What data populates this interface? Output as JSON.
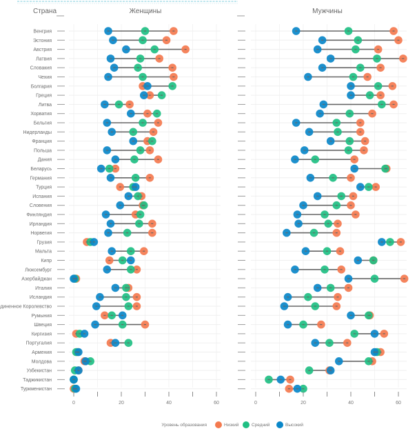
{
  "chart_data": {
    "type": "scatter",
    "subtype": "dumbbell",
    "header": {
      "country_col": "Страна",
      "panels": [
        "Женщины",
        "Мужчины"
      ]
    },
    "xlim": [
      0,
      60
    ],
    "xticks": [
      0,
      10,
      20,
      30,
      40,
      50,
      60
    ],
    "xtick_labels": [
      "0",
      "",
      "20",
      "",
      "40",
      "",
      "60"
    ],
    "grid": true,
    "legend": {
      "title": "Уровень образования",
      "placement": "bottom-center",
      "items": [
        {
          "key": "low",
          "label": "Низкий",
          "color": "#f47a4f"
        },
        {
          "key": "mid",
          "label": "Средний",
          "color": "#1fbf83"
        },
        {
          "key": "high",
          "label": "Высокий",
          "color": "#0a87c9"
        }
      ]
    },
    "connector_color": "#666666",
    "categories": [
      "Венгрия",
      "Эстония",
      "Австрия",
      "Латвия",
      "Словакия",
      "Чехия",
      "Болгария",
      "Греция",
      "Литва",
      "Хорватия",
      "Бельгия",
      "Нидерланды",
      "Франция",
      "Польша",
      "Дания",
      "Беларусь",
      "Германия",
      "Турция",
      "Испания",
      "Словения",
      "Финляндия",
      "Ирландия",
      "Норвегия",
      "Грузия",
      "Мальта",
      "Кипр",
      "Люксембург",
      "Азербайджан",
      "Италия",
      "Исландия",
      "Соединенное Королевство",
      "Румыния",
      "Швеция",
      "Киргизия",
      "Португалия",
      "Армения",
      "Молдова",
      "Узбекистан",
      "Таджикистан",
      "Туркменистан"
    ],
    "series": [
      {
        "panel": "Женщины",
        "low": [
          42,
          39,
          47,
          36,
          41.5,
          42,
          29,
          32,
          23.5,
          31,
          35.5,
          33.5,
          31,
          32,
          35.5,
          17.5,
          32,
          19.5,
          28.5,
          29,
          26,
          33,
          33,
          5.5,
          29.5,
          15,
          26.5,
          1,
          23,
          26.5,
          26.5,
          13,
          30,
          1,
          15.5,
          1.5,
          4.5,
          2,
          0,
          0
        ],
        "mid": [
          30,
          29,
          34,
          28,
          27,
          29,
          41.5,
          37,
          19,
          35,
          29,
          25,
          33,
          28,
          25.5,
          15,
          26,
          25,
          27,
          29.5,
          28,
          27.5,
          22.5,
          7,
          24,
          20.5,
          24,
          0.5,
          22,
          22,
          23,
          16,
          20.5,
          2.5,
          23,
          1,
          7,
          0.5,
          0,
          0.5
        ],
        "high": [
          14.5,
          16.5,
          22,
          15.5,
          17,
          14.5,
          31,
          29.5,
          13,
          24,
          14,
          16,
          25,
          14,
          17.5,
          11.5,
          15.5,
          26,
          23,
          19.5,
          13.5,
          15.5,
          14.5,
          8.5,
          16,
          24,
          14,
          0,
          17.5,
          11,
          9.5,
          20.5,
          9,
          4.5,
          17.5,
          2,
          5,
          2,
          0,
          1
        ]
      },
      {
        "panel": "Мужчины",
        "low": [
          58,
          60,
          51.5,
          62,
          52.5,
          47,
          57.5,
          52.5,
          58,
          49,
          44,
          44,
          46,
          45.5,
          41.5,
          55,
          40,
          50.5,
          41,
          40,
          42,
          34.5,
          34,
          61,
          35.5,
          49.5,
          36,
          62.5,
          39,
          34.5,
          34,
          48,
          27.5,
          54,
          38.5,
          52.5,
          49,
          31,
          14.5,
          14
        ],
        "mid": [
          39,
          43,
          42,
          51,
          44,
          41,
          51.5,
          48,
          53,
          39.5,
          34,
          34.5,
          39.5,
          39,
          25,
          54.5,
          32.5,
          47.5,
          36,
          34,
          29,
          30.5,
          24.5,
          56.5,
          30,
          49.5,
          29,
          50,
          31.5,
          22,
          25,
          47.5,
          20,
          41.5,
          31,
          51,
          47.5,
          22.5,
          5.5,
          20
        ],
        "high": [
          17,
          28,
          26,
          31.5,
          28,
          22,
          40,
          40,
          28.5,
          27,
          17,
          22.5,
          31.5,
          20.5,
          16.5,
          41.5,
          23,
          44,
          26,
          20,
          17.5,
          18,
          13,
          53,
          21,
          43,
          16.5,
          39,
          26,
          13.5,
          12,
          40,
          13.5,
          50,
          25,
          50,
          35,
          31.5,
          10.5,
          17.5
        ]
      }
    ]
  }
}
